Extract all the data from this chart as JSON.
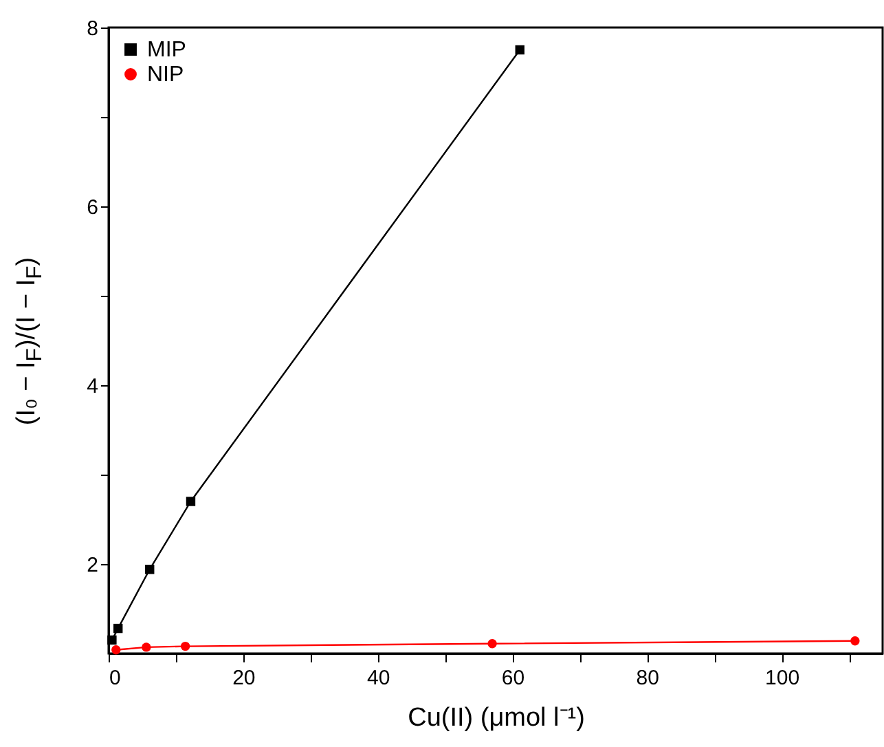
{
  "chart_data": {
    "type": "line",
    "xlabel": "Cu(II) (μmol l⁻¹)",
    "ylabel": "(I₀ − I$_{F}$)/(I − I$_{F}$)",
    "xlim": [
      0,
      115
    ],
    "ylim": [
      1,
      8
    ],
    "xticks": [
      0,
      {
        "value": 10,
        "label": null
      },
      20,
      {
        "value": 30,
        "label": null
      },
      40,
      {
        "value": 50,
        "label": null
      },
      60,
      {
        "value": 70,
        "label": null
      },
      80,
      {
        "value": 90,
        "label": null
      },
      100,
      {
        "value": 110,
        "label": null
      }
    ],
    "yticks": [
      2,
      {
        "value": 3,
        "label": null
      },
      4,
      {
        "value": 5,
        "label": null
      },
      6,
      {
        "value": 7,
        "label": null
      },
      8
    ],
    "grid": false,
    "legend": "top left",
    "line_style": "solid",
    "series": [
      {
        "name": "MIP",
        "color": "#000000",
        "marker": "square",
        "x": [
          0.5,
          1.4,
          6.1,
          12.2,
          61.1
        ],
        "values": [
          1.15,
          1.28,
          1.94,
          2.7,
          7.75
        ]
      },
      {
        "name": "NIP",
        "color": "#ff0000",
        "marker": "circle",
        "x": [
          1.1,
          5.6,
          11.4,
          57,
          110.9
        ],
        "values": [
          1.04,
          1.07,
          1.08,
          1.11,
          1.14
        ]
      }
    ]
  }
}
